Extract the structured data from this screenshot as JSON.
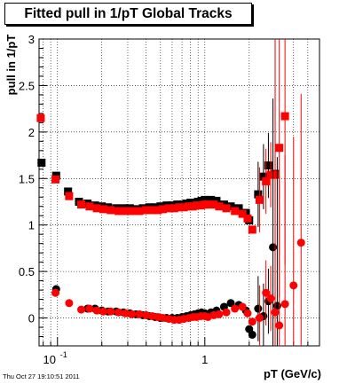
{
  "header": {
    "title": "Fitted pull in 1/pT  Global Tracks"
  },
  "footer": {
    "timestamp": "Thu Oct 27 19:10:51 2011"
  },
  "chart_data": {
    "type": "scatter",
    "title": "Fitted pull in 1/pT  Global Tracks",
    "xlabel": "pT (GeV/c)",
    "ylabel": "pull in 1/pT",
    "xscale": "log",
    "xlim": [
      0.075,
      6.0
    ],
    "ylim": [
      -0.3,
      3.0
    ],
    "x_tick_labels": [
      "10^-1",
      "1"
    ],
    "y_tick_labels": [
      "0",
      "0.5",
      "1",
      "1.5",
      "2",
      "2.5",
      "3"
    ],
    "grid": true,
    "series": [
      {
        "marker": "square",
        "color": "#000000",
        "x": [
          0.078,
          0.098,
          0.118,
          0.14,
          0.16,
          0.18,
          0.2,
          0.22,
          0.25,
          0.28,
          0.31,
          0.34,
          0.38,
          0.42,
          0.46,
          0.5,
          0.55,
          0.6,
          0.65,
          0.7,
          0.75,
          0.8,
          0.85,
          0.9,
          0.95,
          1.0,
          1.1,
          1.2,
          1.35,
          1.5,
          1.7,
          1.9,
          2.0,
          2.3,
          2.5,
          2.7,
          3.0
        ],
        "y": [
          1.67,
          1.53,
          1.36,
          1.25,
          1.23,
          1.21,
          1.2,
          1.19,
          1.18,
          1.18,
          1.18,
          1.17,
          1.18,
          1.19,
          1.19,
          1.2,
          1.21,
          1.21,
          1.22,
          1.22,
          1.23,
          1.24,
          1.24,
          1.25,
          1.26,
          1.27,
          1.27,
          1.26,
          1.22,
          1.2,
          1.18,
          1.13,
          1.05,
          1.33,
          1.52,
          1.64,
          1.55
        ]
      },
      {
        "marker": "square",
        "color": "#ff0000",
        "x": [
          0.077,
          0.097,
          0.12,
          0.145,
          0.165,
          0.185,
          0.205,
          0.23,
          0.26,
          0.29,
          0.32,
          0.36,
          0.4,
          0.44,
          0.48,
          0.52,
          0.57,
          0.62,
          0.67,
          0.72,
          0.78,
          0.83,
          0.88,
          0.94,
          1.0,
          1.05,
          1.15,
          1.25,
          1.4,
          1.6,
          1.8,
          1.95,
          2.1,
          2.35,
          2.6,
          2.8,
          3.0,
          3.2,
          3.5
        ],
        "y": [
          2.15,
          1.49,
          1.31,
          1.22,
          1.2,
          1.18,
          1.17,
          1.16,
          1.15,
          1.15,
          1.15,
          1.15,
          1.16,
          1.16,
          1.16,
          1.17,
          1.18,
          1.18,
          1.19,
          1.19,
          1.2,
          1.2,
          1.21,
          1.21,
          1.22,
          1.22,
          1.22,
          1.2,
          1.18,
          1.15,
          1.12,
          1.07,
          0.95,
          1.27,
          1.47,
          1.54,
          1.54,
          1.83,
          2.17
        ]
      },
      {
        "marker": "circle",
        "color": "#000000",
        "x": [
          0.098,
          0.16,
          0.18,
          0.2,
          0.22,
          0.25,
          0.28,
          0.31,
          0.34,
          0.38,
          0.42,
          0.46,
          0.5,
          0.55,
          0.6,
          0.65,
          0.7,
          0.75,
          0.8,
          0.85,
          0.9,
          0.95,
          1.0,
          1.1,
          1.2,
          1.35,
          1.5,
          1.7,
          1.9,
          2.0,
          2.1,
          2.3,
          2.5,
          2.7,
          2.9,
          3.1
        ],
        "y": [
          0.31,
          0.1,
          0.1,
          0.08,
          0.07,
          0.07,
          0.06,
          0.05,
          0.04,
          0.03,
          0.02,
          0.01,
          0.0,
          0.0,
          0.0,
          0.0,
          0.01,
          0.02,
          0.03,
          0.04,
          0.05,
          0.06,
          0.05,
          0.06,
          0.08,
          0.12,
          0.16,
          0.14,
          0.08,
          -0.12,
          -0.18,
          0.1,
          0.02,
          0.18,
          0.76,
          0.13
        ]
      },
      {
        "marker": "circle",
        "color": "#ff0000",
        "x": [
          0.097,
          0.12,
          0.145,
          0.165,
          0.185,
          0.205,
          0.23,
          0.26,
          0.29,
          0.32,
          0.36,
          0.4,
          0.44,
          0.48,
          0.52,
          0.57,
          0.62,
          0.67,
          0.72,
          0.78,
          0.83,
          0.88,
          0.94,
          1.0,
          1.05,
          1.15,
          1.25,
          1.4,
          1.6,
          1.8,
          1.95,
          2.1,
          2.35,
          2.6,
          2.8,
          3.0,
          3.2,
          3.5,
          4.0,
          4.5
        ],
        "y": [
          0.27,
          0.16,
          0.09,
          0.1,
          0.08,
          0.07,
          0.07,
          0.06,
          0.05,
          0.04,
          0.04,
          0.03,
          0.02,
          0.01,
          0.0,
          -0.01,
          -0.02,
          -0.02,
          -0.01,
          0.0,
          0.01,
          0.01,
          0.02,
          0.02,
          0.01,
          0.03,
          0.04,
          0.06,
          0.1,
          0.12,
          0.05,
          -0.04,
          0.0,
          0.27,
          0.21,
          0.06,
          -0.08,
          0.15,
          0.35,
          0.81
        ]
      }
    ]
  }
}
